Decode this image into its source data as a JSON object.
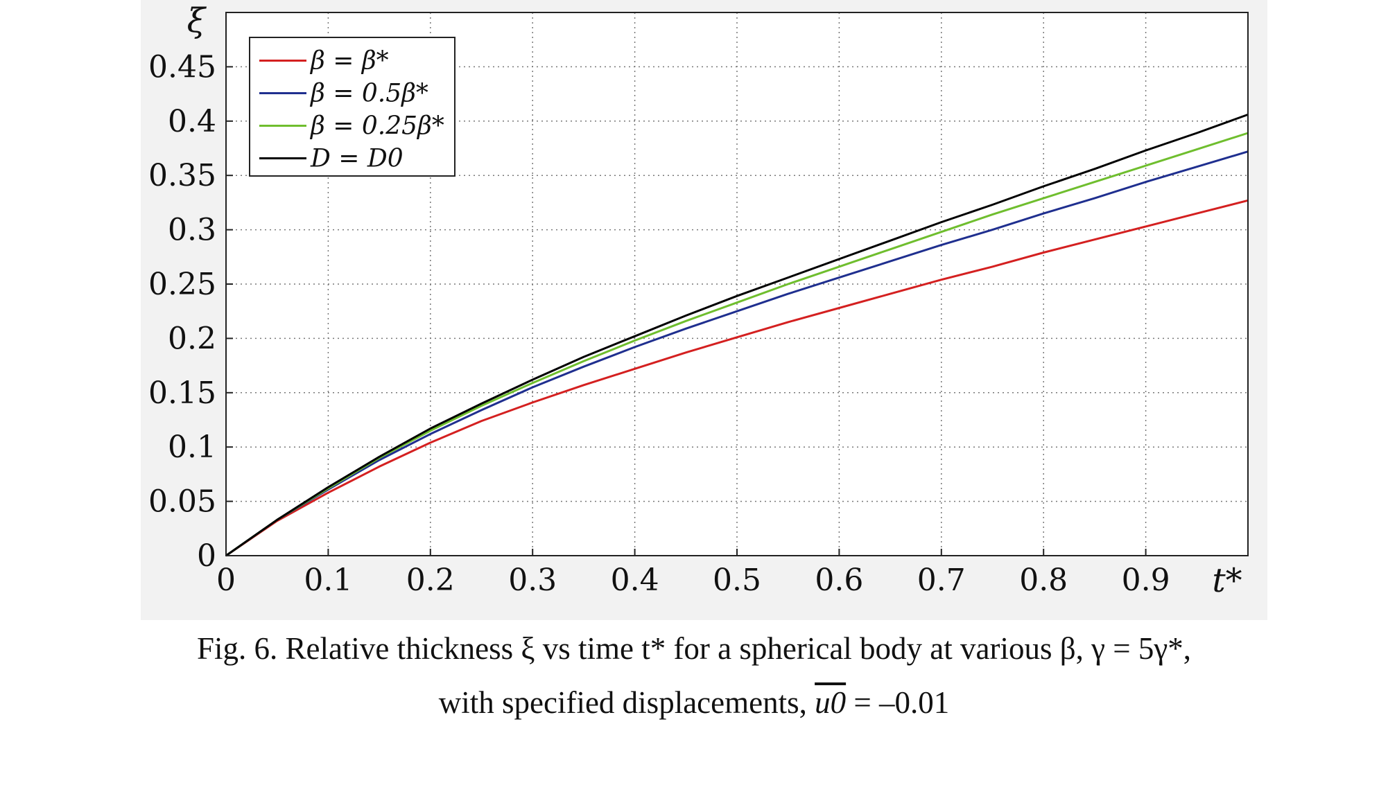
{
  "chart_data": {
    "type": "line",
    "title": "",
    "xlabel": "t*",
    "ylabel": "ξ",
    "xlim": [
      0,
      1
    ],
    "ylim": [
      0,
      0.5
    ],
    "xticks": [
      0,
      0.1,
      0.2,
      0.3,
      0.4,
      0.5,
      0.6,
      0.7,
      0.8,
      0.9
    ],
    "xtick_labels": [
      "0",
      "0.1",
      "0.2",
      "0.3",
      "0.4",
      "0.5",
      "0.6",
      "0.7",
      "0.8",
      "0.9"
    ],
    "yticks": [
      0,
      0.05,
      0.1,
      0.15,
      0.2,
      0.25,
      0.3,
      0.35,
      0.4,
      0.45
    ],
    "ytick_labels": [
      "0",
      "0.05",
      "0.1",
      "0.15",
      "0.2",
      "0.25",
      "0.3",
      "0.35",
      "0.4",
      "0.45"
    ],
    "grid": true,
    "legend_position": "top-left",
    "x": [
      0,
      0.05,
      0.1,
      0.15,
      0.2,
      0.25,
      0.3,
      0.35,
      0.4,
      0.45,
      0.5,
      0.55,
      0.6,
      0.65,
      0.7,
      0.75,
      0.8,
      0.85,
      0.9,
      0.95,
      1.0
    ],
    "series": [
      {
        "name": "β = β*",
        "color": "#d42020",
        "values": [
          0,
          0.032,
          0.058,
          0.082,
          0.104,
          0.124,
          0.141,
          0.157,
          0.172,
          0.187,
          0.201,
          0.215,
          0.228,
          0.241,
          0.254,
          0.266,
          0.279,
          0.291,
          0.303,
          0.315,
          0.327
        ]
      },
      {
        "name": "β = 0.5β*",
        "color": "#1f2f8f",
        "values": [
          0,
          0.033,
          0.061,
          0.088,
          0.112,
          0.134,
          0.155,
          0.174,
          0.192,
          0.209,
          0.225,
          0.241,
          0.256,
          0.271,
          0.286,
          0.3,
          0.315,
          0.329,
          0.344,
          0.358,
          0.372
        ]
      },
      {
        "name": "β = 0.25β*",
        "color": "#6fbe2e",
        "values": [
          0,
          0.033,
          0.062,
          0.09,
          0.115,
          0.138,
          0.159,
          0.179,
          0.198,
          0.216,
          0.233,
          0.25,
          0.266,
          0.282,
          0.298,
          0.314,
          0.329,
          0.344,
          0.359,
          0.374,
          0.389
        ]
      },
      {
        "name": "D = D0",
        "color": "#000000",
        "values": [
          0,
          0.033,
          0.063,
          0.091,
          0.117,
          0.14,
          0.162,
          0.183,
          0.202,
          0.221,
          0.239,
          0.256,
          0.273,
          0.29,
          0.307,
          0.323,
          0.34,
          0.356,
          0.373,
          0.389,
          0.406
        ]
      }
    ]
  },
  "legend": {
    "items": [
      {
        "label": "β = β*",
        "color": "#d42020"
      },
      {
        "label": "β = 0.5β*",
        "color": "#1f2f8f"
      },
      {
        "label": "β = 0.25β*",
        "color": "#6fbe2e"
      },
      {
        "label": "D = D0",
        "color": "#000000"
      }
    ]
  },
  "caption": {
    "line1": "Fig. 6. Relative thickness ξ vs time t* for a spherical body at various β, γ = 5γ*,",
    "line2_prefix": "with specified displacements,",
    "line2_var": "u0",
    "line2_suffix": "= –0.01"
  }
}
